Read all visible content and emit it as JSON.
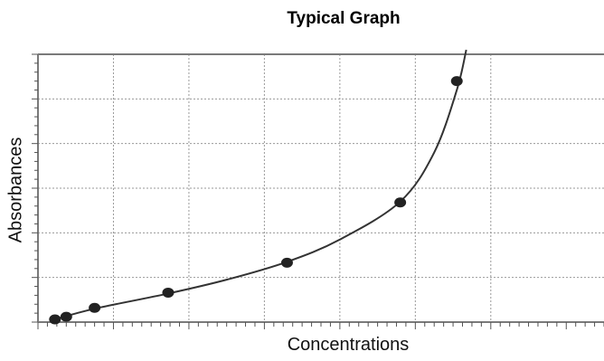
{
  "chart_data": {
    "type": "scatter",
    "title": "Typical Graph",
    "xlabel": "Concentrations",
    "ylabel": "Absorbances",
    "grid": true,
    "xlim": [
      0,
      12
    ],
    "ylim": [
      0,
      6
    ],
    "series": [
      {
        "points": [
          [
            0.45,
            0.06
          ],
          [
            0.75,
            0.12
          ],
          [
            1.5,
            0.32
          ],
          [
            3.45,
            0.66
          ],
          [
            6.6,
            1.33
          ],
          [
            9.6,
            2.68
          ],
          [
            11.1,
            5.4
          ]
        ],
        "curve": [
          [
            0.45,
            0.06
          ],
          [
            1.5,
            0.3
          ],
          [
            3.45,
            0.64
          ],
          [
            5.0,
            0.95
          ],
          [
            6.6,
            1.35
          ],
          [
            8.0,
            1.85
          ],
          [
            9.6,
            2.7
          ],
          [
            10.5,
            3.8
          ],
          [
            11.1,
            5.2
          ],
          [
            11.35,
            6.1
          ]
        ],
        "marker_color": "#222222",
        "line_color": "#333333"
      }
    ]
  }
}
